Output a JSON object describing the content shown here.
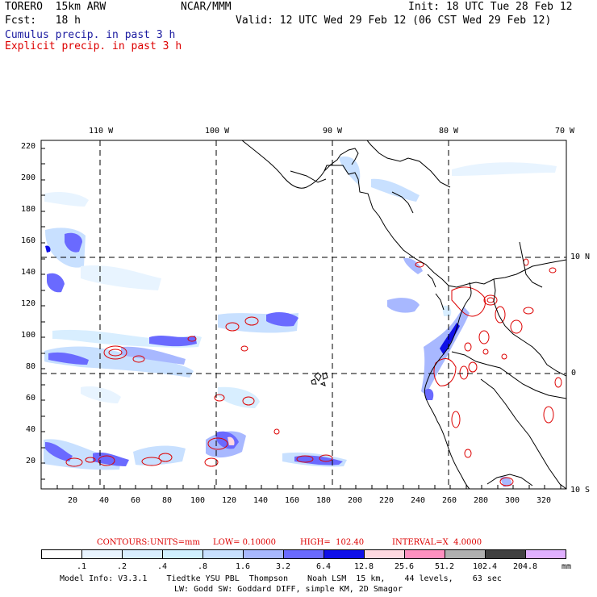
{
  "header": {
    "model_line": "TORERO  15km ARW",
    "org": "NCAR/MMM",
    "init": "Init: 18 UTC Tue 28 Feb 12",
    "fcst": "Fcst:   18 h",
    "valid": "Valid: 12 UTC Wed 29 Feb 12 (06 CST Wed 29 Feb 12)",
    "cumulus_label": "Cumulus precip. in past 3 h",
    "explicit_label": "Explicit precip. in past 3 h",
    "cumulus_color": "#1a1aa0",
    "explicit_color": "#dd0000"
  },
  "map": {
    "lon_labels": [
      "110 W",
      "100 W",
      "90 W",
      "80 W",
      "70 W"
    ],
    "lat_labels": [
      "10 N",
      "0",
      "10 S"
    ],
    "y_ticks": [
      "220",
      "200",
      "180",
      "160",
      "140",
      "120",
      "100",
      "80",
      "60",
      "40",
      "20"
    ],
    "x_ticks": [
      "20",
      "40",
      "60",
      "80",
      "100",
      "120",
      "140",
      "160",
      "180",
      "200",
      "220",
      "240",
      "260",
      "280",
      "300",
      "320"
    ],
    "features": [
      "coastline-central-america",
      "coastline-south-america",
      "galapagos-islands",
      "cumulus-precip-itcz",
      "explicit-precip-cells"
    ]
  },
  "contours": {
    "contours_label": "CONTOURS:",
    "units": "UNITS=mm",
    "low": "LOW= 0.10000",
    "high": "HIGH=  102.40",
    "interval": "INTERVAL=X  4.0000"
  },
  "colorbar": {
    "labels": [
      ".1",
      ".2",
      ".4",
      ".8",
      "1.6",
      "3.2",
      "6.4",
      "12.8",
      "25.6",
      "51.2",
      "102.4",
      "204.8"
    ],
    "colors": [
      "#ffffff",
      "#e8f4ff",
      "#d8eeff",
      "#d0f0ff",
      "#c8e0ff",
      "#a8b8ff",
      "#6a6aff",
      "#1010e8",
      "#ffd8e0",
      "#ff90c0",
      "#b0b0b0",
      "#404040",
      "#e0b0ff"
    ],
    "unit": "mm"
  },
  "footer": {
    "line1": "Model Info: V3.3.1    Tiedtke YSU PBL  Thompson    Noah LSM  15 km,    44 levels,    63 sec",
    "line2": "LW: Godd SW: Goddard DIFF, simple KM, 2D Smagor"
  }
}
